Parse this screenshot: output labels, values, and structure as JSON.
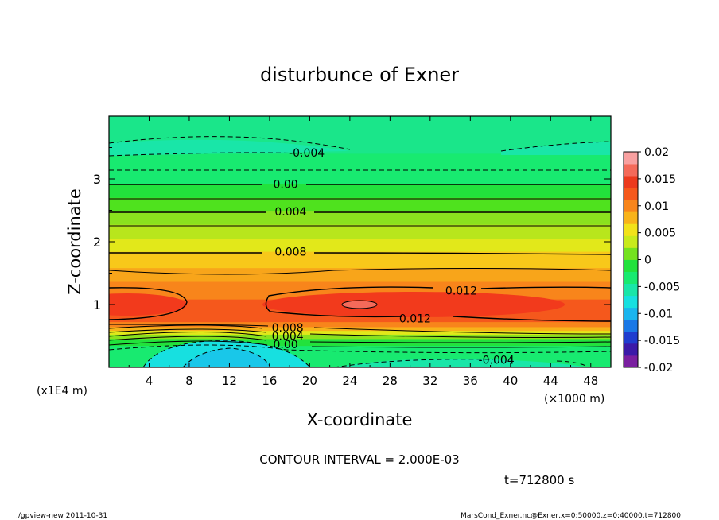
{
  "chart_data": {
    "type": "heatmap",
    "title": "disturbunce of Exner",
    "xlabel": "X-coordinate",
    "ylabel": "Z-coordinate",
    "x_unit": "(×1000 m)",
    "y_unit": "(x1E4 m)",
    "xlim": [
      0,
      50
    ],
    "ylim": [
      0,
      4
    ],
    "x_ticks": [
      4,
      8,
      12,
      16,
      20,
      24,
      28,
      32,
      36,
      40,
      44,
      48
    ],
    "y_ticks": [
      1,
      2,
      3
    ],
    "colorbar": {
      "range": [
        -0.02,
        0.02
      ],
      "ticks": [
        "0.02",
        "0.015",
        "0.01",
        "0.005",
        "0",
        "-0.005",
        "-0.01",
        "-0.015",
        "-0.02"
      ],
      "colors": [
        "#7a1fa0",
        "#3b1aa8",
        "#1f3dcf",
        "#1a78e6",
        "#1ab5ee",
        "#17e0e0",
        "#19e6a8",
        "#18ea70",
        "#22e23c",
        "#74e21f",
        "#c8ea1c",
        "#f2e21a",
        "#f8b31a",
        "#f8851b",
        "#f5581c",
        "#ec3a1e",
        "#f46a5a",
        "#f8a0a0"
      ]
    },
    "contour_labels": [
      {
        "text": "-0.004",
        "x": 19.7,
        "z": 3.42
      },
      {
        "text": "0.00",
        "x": 17.6,
        "z": 2.92
      },
      {
        "text": "0.004",
        "x": 18.1,
        "z": 2.48
      },
      {
        "text": "0.008",
        "x": 18.1,
        "z": 1.84
      },
      {
        "text": "0.012",
        "x": 35.1,
        "z": 1.22
      },
      {
        "text": "0.012",
        "x": 30.5,
        "z": 0.78
      },
      {
        "text": "0.008",
        "x": 17.8,
        "z": 0.63
      },
      {
        "text": "0.004",
        "x": 17.8,
        "z": 0.5
      },
      {
        "text": "0.00",
        "x": 17.6,
        "z": 0.37
      },
      {
        "text": "-0.004",
        "x": 38.6,
        "z": 0.12
      }
    ],
    "contour_interval_text": "CONTOUR INTERVAL = 2.000E-03",
    "time_text": "t=712800 s"
  },
  "footer": {
    "left": "./gpview-new   2011-10-31",
    "right": "MarsCond_Exner.nc@Exner,x=0:50000,z=0:40000,t=712800"
  }
}
